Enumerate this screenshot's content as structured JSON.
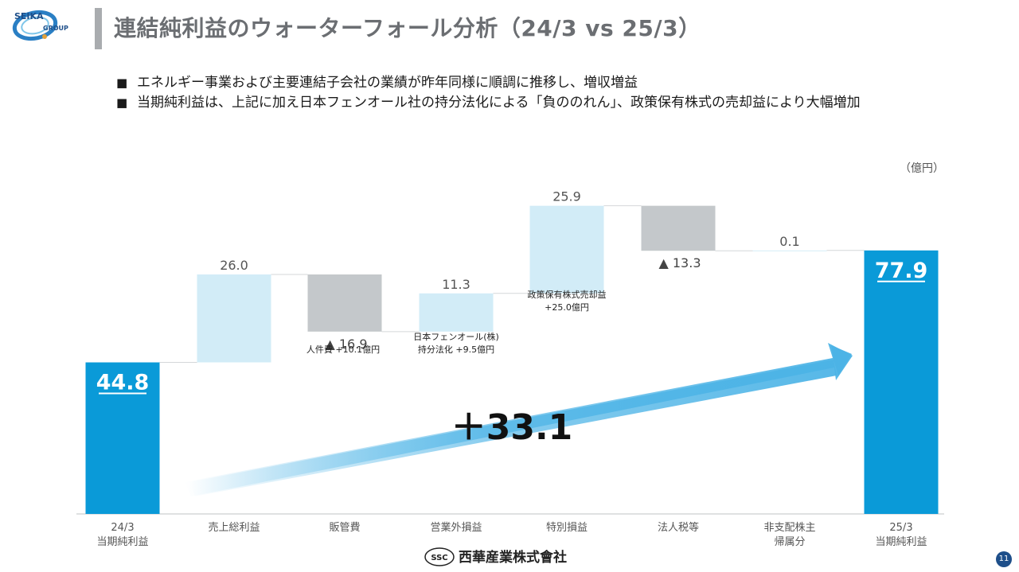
{
  "header": {
    "title": "連結純利益のウォーターフォール分析（24/3 vs 25/3）",
    "logo_text_top": "SEIKA",
    "logo_text_bottom": "GROUP"
  },
  "bullets": [
    "エネルギー事業および主要連結子会社の業績が昨年同様に順調に推移し、増収増益",
    "当期純利益は、上記に加え日本フェンオール社の持分法化による「負ののれん」、政策保有株式の売却益により大幅増加"
  ],
  "colors": {
    "total": "#0a9ad8",
    "increase": "#d2ecf7",
    "decrease": "#c4c8cb",
    "arrow": "#4bb3e6"
  },
  "chart_data": {
    "type": "waterfall",
    "unit": "（億円）",
    "categories": [
      "24/3\n当期純利益",
      "売上総利益",
      "販管費",
      "営業外損益",
      "特別損益",
      "法人税等",
      "非支配株主\n帰属分",
      "25/3\n当期純利益"
    ],
    "values": [
      44.8,
      26.0,
      -16.9,
      11.3,
      25.9,
      -13.3,
      0.1,
      77.9
    ],
    "kinds": [
      "total",
      "increase",
      "decrease",
      "increase",
      "increase",
      "decrease",
      "increase",
      "total"
    ],
    "value_labels": [
      "44.8",
      "26.0",
      "▲ 16.9",
      "11.3",
      "25.9",
      "▲ 13.3",
      "0.1",
      "77.9"
    ],
    "annotations": [
      {
        "category": "販管費",
        "text": "人件費 +10.1億円"
      },
      {
        "category": "営業外損益",
        "text": "日本フェンオール(株)\n持分法化 +9.5億円"
      },
      {
        "category": "特別損益",
        "text": "政策保有株式売却益\n+25.0億円"
      }
    ],
    "change_label": "＋33.1"
  },
  "footer": {
    "company": "西華産業株式會社",
    "mark": "SSC",
    "page": "11"
  }
}
